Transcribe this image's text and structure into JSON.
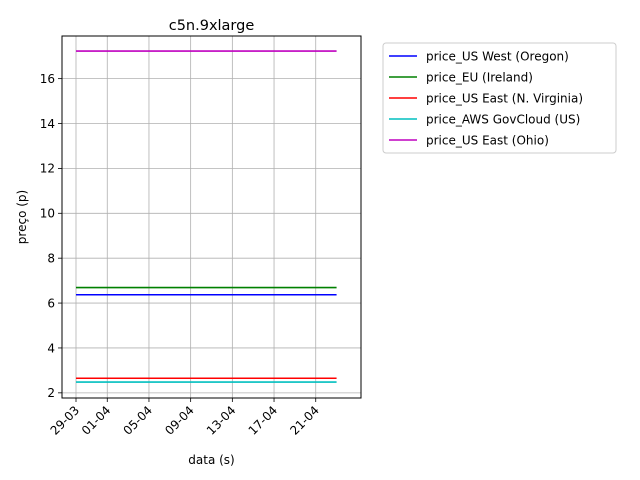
{
  "chart_data": {
    "type": "line",
    "title": "c5n.9xlarge",
    "xlabel": "data (s)",
    "ylabel": "preço (p)",
    "x_range": [
      "2021-03-29",
      "2021-04-24"
    ],
    "x_ticks": [
      {
        "date": "2021-03-29",
        "label": "29-03"
      },
      {
        "date": "2021-04-01",
        "label": "01-04"
      },
      {
        "date": "2021-04-05",
        "label": "05-04"
      },
      {
        "date": "2021-04-09",
        "label": "09-04"
      },
      {
        "date": "2021-04-13",
        "label": "13-04"
      },
      {
        "date": "2021-04-17",
        "label": "17-04"
      },
      {
        "date": "2021-04-21",
        "label": "21-04"
      }
    ],
    "ylim": [
      1.77,
      17.9
    ],
    "y_ticks": [
      2,
      4,
      6,
      8,
      10,
      12,
      14,
      16
    ],
    "grid": true,
    "legend_position": "outside-right",
    "series": [
      {
        "name": "price_US West (Oregon)",
        "color": "#0000ff",
        "points": [
          {
            "x": "2021-03-29",
            "y": 6.37
          },
          {
            "x": "2021-04-23",
            "y": 6.37
          }
        ]
      },
      {
        "name": "price_EU (Ireland)",
        "color": "#008000",
        "points": [
          {
            "x": "2021-03-29",
            "y": 6.69
          },
          {
            "x": "2021-04-23",
            "y": 6.69
          }
        ]
      },
      {
        "name": "price_US East (N. Virginia)",
        "color": "#ff0000",
        "points": [
          {
            "x": "2021-03-29",
            "y": 2.65
          },
          {
            "x": "2021-04-23",
            "y": 2.65
          }
        ]
      },
      {
        "name": "price_AWS GovCloud (US)",
        "color": "#00bfbf",
        "points": [
          {
            "x": "2021-03-29",
            "y": 2.48
          },
          {
            "x": "2021-04-23",
            "y": 2.48
          }
        ]
      },
      {
        "name": "price_US East (Ohio)",
        "color": "#bf00bf",
        "points": [
          {
            "x": "2021-03-29",
            "y": 17.23
          },
          {
            "x": "2021-04-23",
            "y": 17.23
          }
        ]
      }
    ]
  }
}
